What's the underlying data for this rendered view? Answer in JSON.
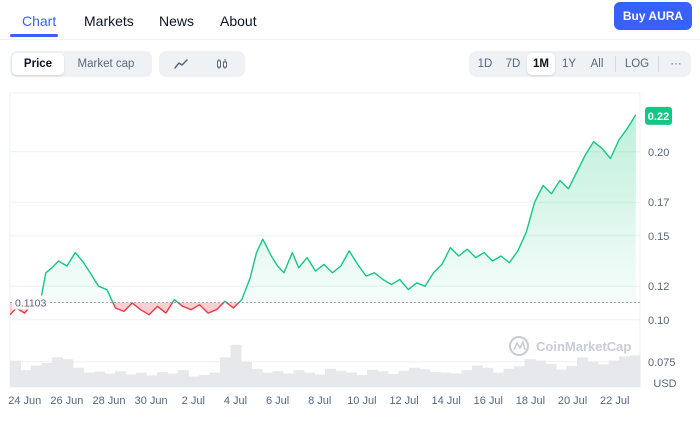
{
  "nav": {
    "tabs": [
      "Chart",
      "Markets",
      "News",
      "About"
    ],
    "active_tab": "Chart",
    "buy_label": "Buy AURA"
  },
  "toolbar": {
    "metric_options": [
      "Price",
      "Market cap"
    ],
    "selected_metric": "Price",
    "chart_type_icons": [
      "line-chart-icon",
      "candlestick-icon"
    ],
    "ranges": [
      "1D",
      "7D",
      "1M",
      "1Y",
      "All"
    ],
    "selected_range": "1M",
    "log_label": "LOG",
    "more_label": "···"
  },
  "colors": {
    "accent": "#3861fb",
    "up": "#16c784",
    "down": "#ea3943"
  },
  "chart_data": {
    "type": "line",
    "currency_label": "USD",
    "reference_price": 0.1103,
    "reference_label": "0.1103",
    "current_label": "0.22",
    "watermark": "CoinMarketCap",
    "ylim": [
      0.06,
      0.235
    ],
    "y_ticks": [
      0.075,
      0.1,
      0.12,
      0.15,
      0.17,
      0.2
    ],
    "y_tick_labels": [
      "0.075",
      "0.10",
      "0.12",
      "0.15",
      "0.17",
      "0.20"
    ],
    "x_ticks": [
      "24 Jun",
      "26 Jun",
      "28 Jun",
      "30 Jun",
      "2 Jul",
      "4 Jul",
      "6 Jul",
      "8 Jul",
      "10 Jul",
      "12 Jul",
      "14 Jul",
      "16 Jul",
      "18 Jul",
      "20 Jul",
      "22 Jul"
    ],
    "x_range_days": [
      -0.7,
      29.2
    ],
    "series": [
      {
        "x": [
          -0.7,
          -0.4,
          0,
          0.3,
          0.7,
          1.0,
          1.3,
          1.6,
          2.0,
          2.4,
          2.8,
          3.1,
          3.5,
          3.9,
          4.3,
          4.7,
          5.1,
          5.5,
          5.9,
          6.3,
          6.7,
          7.1,
          7.5,
          7.9,
          8.3,
          8.7,
          9.1,
          9.5,
          9.9,
          10.3,
          10.7,
          11.0,
          11.3,
          11.7,
          12.0,
          12.3,
          12.7,
          13.0,
          13.4,
          13.8,
          14.2,
          14.6,
          15.0,
          15.4,
          15.8,
          16.2,
          16.6,
          17.0,
          17.4,
          17.8,
          18.2,
          18.6,
          19.0,
          19.4,
          19.8,
          20.2,
          20.6,
          21.0,
          21.4,
          21.8,
          22.2,
          22.6,
          23.0,
          23.4,
          23.8,
          24.2,
          24.6,
          25.0,
          25.4,
          25.8,
          26.2,
          26.6,
          27.0,
          27.4,
          27.8,
          28.2,
          28.6,
          29.0
        ],
        "y": [
          0.103,
          0.107,
          0.104,
          0.109,
          0.108,
          0.128,
          0.131,
          0.135,
          0.132,
          0.14,
          0.134,
          0.128,
          0.12,
          0.118,
          0.107,
          0.105,
          0.11,
          0.106,
          0.103,
          0.108,
          0.104,
          0.112,
          0.108,
          0.106,
          0.109,
          0.104,
          0.106,
          0.111,
          0.107,
          0.112,
          0.125,
          0.14,
          0.148,
          0.138,
          0.132,
          0.128,
          0.14,
          0.131,
          0.137,
          0.129,
          0.133,
          0.128,
          0.132,
          0.141,
          0.133,
          0.126,
          0.128,
          0.124,
          0.121,
          0.124,
          0.118,
          0.122,
          0.12,
          0.128,
          0.133,
          0.143,
          0.138,
          0.142,
          0.137,
          0.14,
          0.135,
          0.138,
          0.134,
          0.141,
          0.152,
          0.17,
          0.18,
          0.175,
          0.183,
          0.178,
          0.188,
          0.198,
          0.206,
          0.202,
          0.196,
          0.207,
          0.214,
          0.222
        ]
      }
    ],
    "volume": [
      0.55,
      0.35,
      0.45,
      0.5,
      0.62,
      0.58,
      0.4,
      0.3,
      0.32,
      0.28,
      0.33,
      0.26,
      0.3,
      0.24,
      0.31,
      0.28,
      0.35,
      0.22,
      0.25,
      0.3,
      0.62,
      0.88,
      0.52,
      0.38,
      0.3,
      0.33,
      0.28,
      0.35,
      0.3,
      0.26,
      0.38,
      0.34,
      0.3,
      0.25,
      0.36,
      0.33,
      0.27,
      0.34,
      0.4,
      0.37,
      0.31,
      0.3,
      0.28,
      0.35,
      0.45,
      0.4,
      0.3,
      0.38,
      0.43,
      0.58,
      0.55,
      0.48,
      0.36,
      0.44,
      0.62,
      0.52,
      0.47,
      0.55,
      0.64,
      0.66
    ],
    "grid": true
  }
}
